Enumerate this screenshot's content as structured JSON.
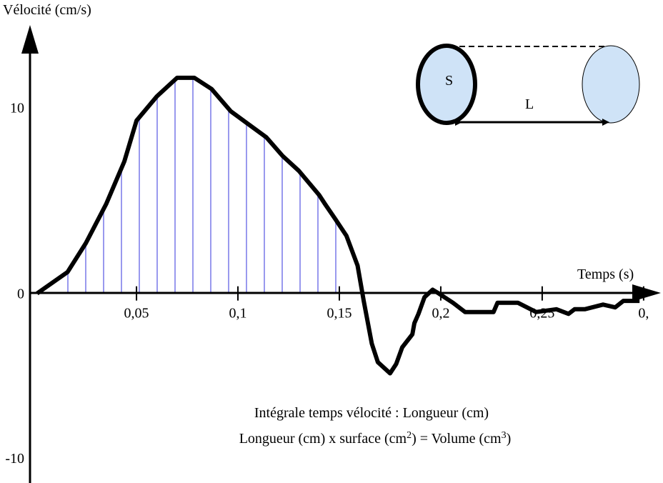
{
  "chart_data": {
    "type": "line",
    "y_label": "Vélocité (cm/s)",
    "x_label": "Temps (s)",
    "x": [
      0.001,
      0.016,
      0.025,
      0.035,
      0.044,
      0.05,
      0.06,
      0.07,
      0.0785,
      0.087,
      0.0965,
      0.104,
      0.114,
      0.122,
      0.13,
      0.14,
      0.143,
      0.148,
      0.1535,
      0.159,
      0.162,
      0.166,
      0.169,
      0.175,
      0.178,
      0.181,
      0.186,
      0.187,
      0.189,
      0.192,
      0.196,
      0.199,
      0.206,
      0.212,
      0.226,
      0.228,
      0.238,
      0.247,
      0.257,
      0.263,
      0.266,
      0.271,
      0.28,
      0.286,
      0.29,
      0.298
    ],
    "series": [
      {
        "color": "#000000",
        "values": [
          0,
          1.15,
          2.7,
          4.8,
          7.1,
          9.3,
          10.6,
          11.6,
          11.6,
          11.0,
          9.8,
          9.2,
          8.4,
          7.4,
          6.6,
          5.3,
          4.8,
          4.0,
          3.1,
          1.5,
          -0.4,
          -2.7,
          -3.7,
          -4.3,
          -3.8,
          -2.9,
          -2.2,
          -1.6,
          -1.1,
          -0.2,
          0.2,
          0,
          -0.5,
          -1.0,
          -1.0,
          -0.5,
          -0.5,
          -1.0,
          -0.85,
          -1.1,
          -0.85,
          -0.85,
          -0.6,
          -0.75,
          -0.4,
          -0.4
        ]
      }
    ],
    "xlim": [
      -0.0025,
      0.3085
    ],
    "ylim": [
      -10.2,
      14.25
    ],
    "xticks": [
      {
        "value": 0.05,
        "label": "0,05"
      },
      {
        "value": 0.1,
        "label": "0,1"
      },
      {
        "value": 0.15,
        "label": "0,15"
      },
      {
        "value": 0.2,
        "label": "0,2"
      },
      {
        "value": 0.25,
        "label": "0,25"
      },
      {
        "value": 0.3,
        "label": "0,"
      }
    ],
    "yticks": [
      -10,
      0,
      10
    ],
    "hatch_color": "#9999ee",
    "annotations": [
      "Intégrale temps vélocité : Longueur (cm)",
      [
        "Longueur (cm) x surface (cm",
        "2",
        ") = Volume (cm",
        "3",
        ")"
      ]
    ],
    "inset": {
      "surface_label": "S",
      "length_label": "L"
    }
  }
}
